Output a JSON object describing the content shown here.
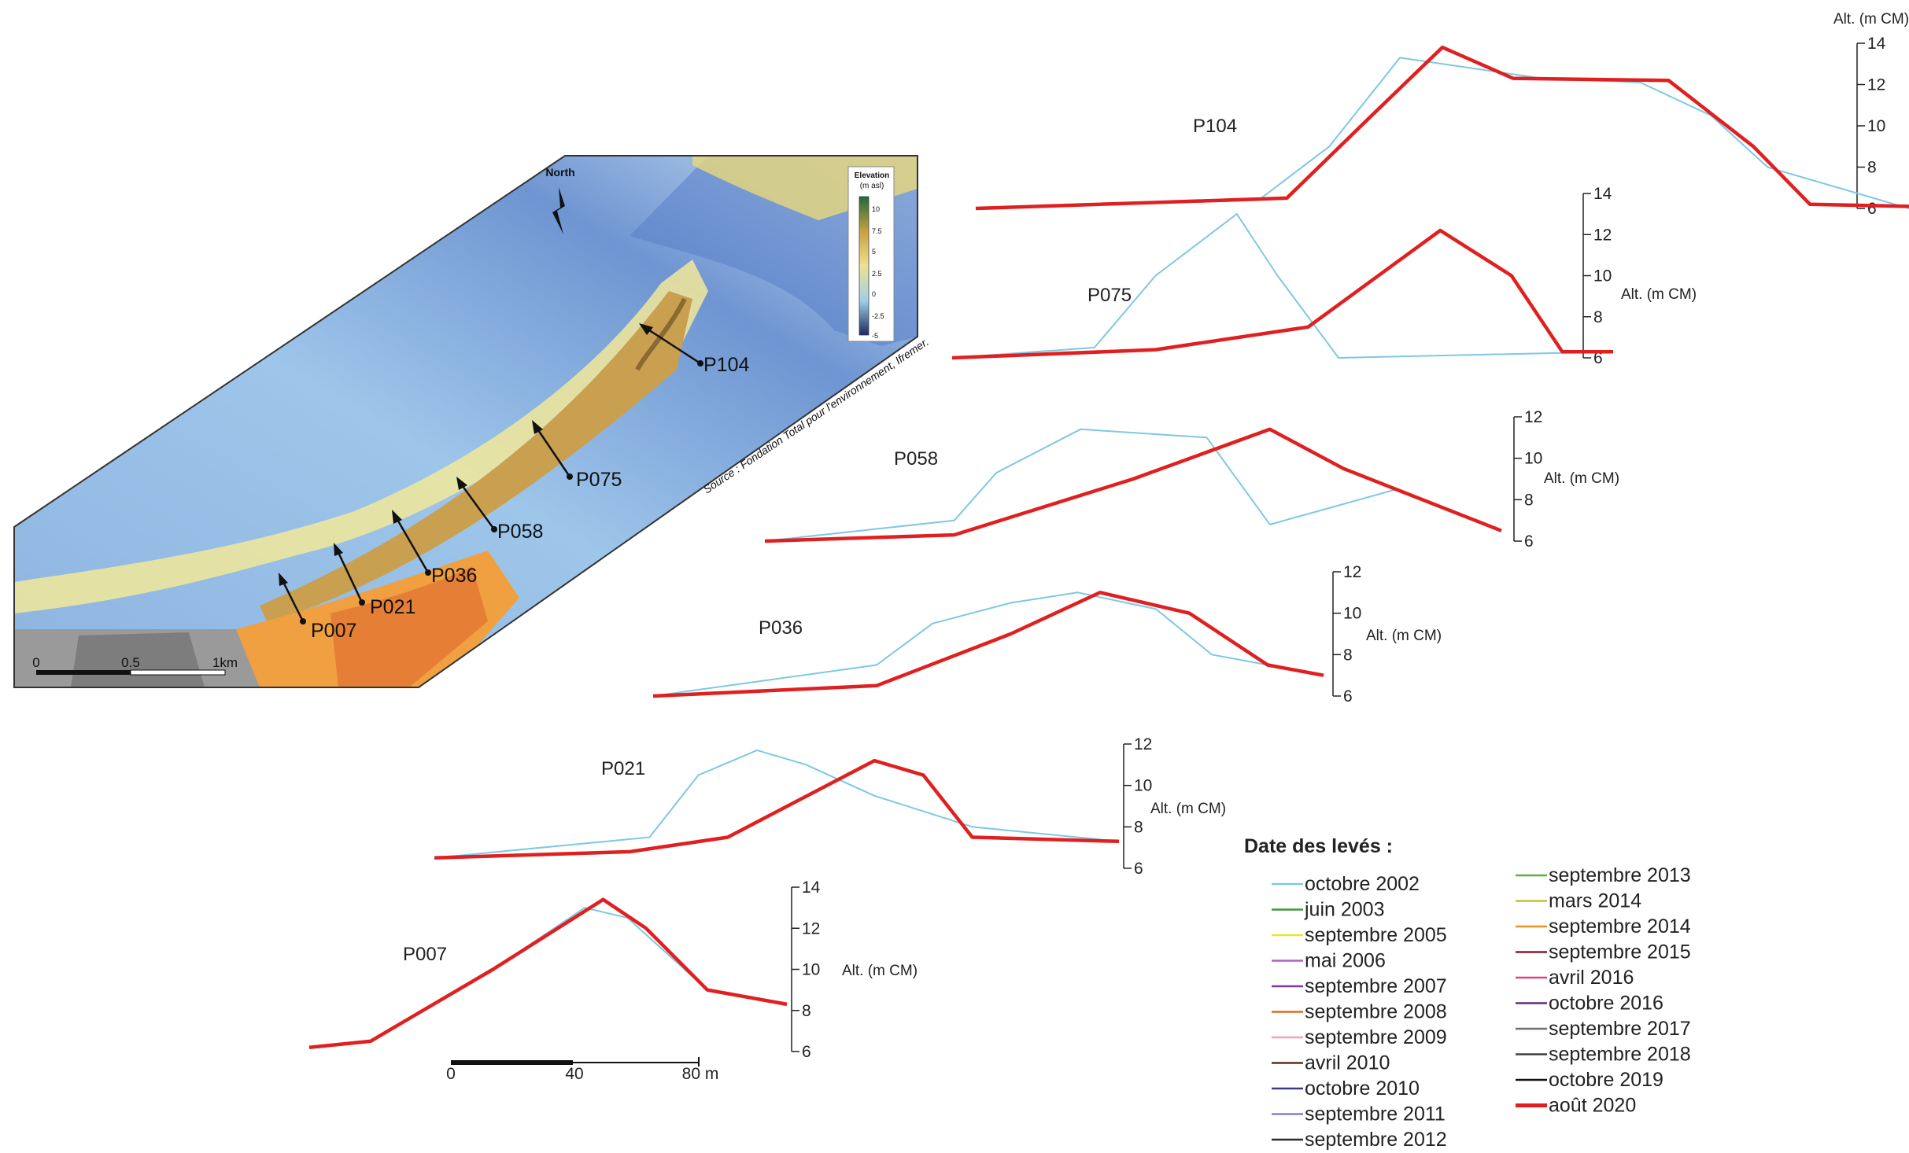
{
  "map": {
    "north_label": "North",
    "elevation_title": "Elevation",
    "elevation_unit": "(m asl)",
    "elevation_ticks": [
      "10",
      "7.5",
      "5",
      "2.5",
      "0",
      "-2.5",
      "-5"
    ],
    "source": "Source : Fondation Total pour l'environnement, Ifremer.",
    "scale_labels": [
      "0",
      "0.5",
      "1km"
    ],
    "profile_labels": [
      "P104",
      "P075",
      "P058",
      "P036",
      "P021",
      "P007"
    ]
  },
  "profile_scale": {
    "labels": [
      "0",
      "40",
      "80 m"
    ]
  },
  "legend": {
    "title": "Date des levés :",
    "items": [
      {
        "label": "octobre 2002",
        "color": "#7ec8e3"
      },
      {
        "label": "juin 2003",
        "color": "#3a9a3a"
      },
      {
        "label": "septembre 2005",
        "color": "#e8e820"
      },
      {
        "label": "mai 2006",
        "color": "#b060c0"
      },
      {
        "label": "septembre 2007",
        "color": "#7a3a9a"
      },
      {
        "label": "septembre 2008",
        "color": "#e06a20"
      },
      {
        "label": "septembre 2009",
        "color": "#f0a0c0"
      },
      {
        "label": "avril 2010",
        "color": "#5a3020"
      },
      {
        "label": "octobre 2010",
        "color": "#3a3a8a"
      },
      {
        "label": "septembre 2011",
        "color": "#8080d0"
      },
      {
        "label": "septembre 2012",
        "color": "#2a2a2a"
      },
      {
        "label": "septembre 2013",
        "color": "#5ab03a"
      },
      {
        "label": "mars 2014",
        "color": "#c8c030"
      },
      {
        "label": "septembre 2014",
        "color": "#f0902a"
      },
      {
        "label": "septembre 2015",
        "color": "#8a1a2a"
      },
      {
        "label": "avril 2016",
        "color": "#e04080"
      },
      {
        "label": "octobre 2016",
        "color": "#6a2a7a"
      },
      {
        "label": "septembre 2017",
        "color": "#707070"
      },
      {
        "label": "septembre 2018",
        "color": "#404040"
      },
      {
        "label": "octobre 2019",
        "color": "#111111"
      },
      {
        "label": "août 2020",
        "color": "#e02020"
      }
    ]
  },
  "chart_data": [
    {
      "type": "line",
      "name": "P104",
      "ylabel": "Alt. (m CM)",
      "yticks": [
        "14",
        "12",
        "10",
        "8",
        "6"
      ],
      "ylim": [
        6,
        14
      ],
      "series": [
        {
          "name": "octobre 2002",
          "x": [
            0,
            20,
            25,
            30,
            40,
            47,
            52,
            56,
            66
          ],
          "y": [
            6.0,
            6.4,
            9.0,
            13.3,
            12.3,
            12.1,
            10.5,
            8.0,
            6.0
          ]
        },
        {
          "name": "août 2020",
          "x": [
            0,
            22,
            28,
            33,
            38,
            49,
            55,
            59,
            66
          ],
          "y": [
            6.0,
            6.5,
            10.5,
            13.8,
            12.3,
            12.2,
            9.0,
            6.2,
            6.1
          ]
        }
      ]
    },
    {
      "type": "line",
      "name": "P075",
      "ylabel": "Alt. (m CM)",
      "yticks": [
        "14",
        "12",
        "10",
        "8",
        "6"
      ],
      "ylim": [
        6,
        14
      ],
      "series": [
        {
          "name": "octobre 2002",
          "x": [
            0,
            14,
            20,
            28,
            32,
            38,
            65
          ],
          "y": [
            6.0,
            6.5,
            10.0,
            13.0,
            10.0,
            6.0,
            6.3
          ]
        },
        {
          "name": "août 2020",
          "x": [
            0,
            20,
            35,
            48,
            55,
            60,
            65
          ],
          "y": [
            6.0,
            6.4,
            7.5,
            12.2,
            10.0,
            6.3,
            6.3
          ]
        }
      ]
    },
    {
      "type": "line",
      "name": "P058",
      "ylabel": "Alt. (m CM)",
      "yticks": [
        "12",
        "10",
        "8",
        "6"
      ],
      "ylim": [
        6,
        12
      ],
      "series": [
        {
          "name": "octobre 2002",
          "x": [
            0,
            18,
            22,
            30,
            42,
            48,
            60,
            70
          ],
          "y": [
            6.0,
            7.0,
            9.3,
            11.4,
            11.0,
            6.8,
            8.5,
            6.5
          ]
        },
        {
          "name": "août 2020",
          "x": [
            0,
            18,
            35,
            48,
            55,
            60,
            70
          ],
          "y": [
            6.0,
            6.3,
            9.0,
            11.4,
            9.5,
            8.5,
            6.5
          ]
        }
      ]
    },
    {
      "type": "line",
      "name": "P036",
      "ylabel": "Alt. (m CM)",
      "yticks": [
        "12",
        "10",
        "8",
        "6"
      ],
      "ylim": [
        6,
        12
      ],
      "series": [
        {
          "name": "octobre 2002",
          "x": [
            0,
            20,
            25,
            32,
            38,
            45,
            50,
            60
          ],
          "y": [
            6.0,
            7.5,
            9.5,
            10.5,
            11.0,
            10.2,
            8.0,
            7.0
          ]
        },
        {
          "name": "août 2020",
          "x": [
            0,
            20,
            32,
            40,
            48,
            55,
            60
          ],
          "y": [
            6.0,
            6.5,
            9.0,
            11.0,
            10.0,
            7.5,
            7.0
          ]
        }
      ]
    },
    {
      "type": "line",
      "name": "P021",
      "ylabel": "Alt. (m CM)",
      "yticks": [
        "12",
        "10",
        "8",
        "6"
      ],
      "ylim": [
        6,
        12
      ],
      "series": [
        {
          "name": "octobre 2002",
          "x": [
            0,
            22,
            27,
            33,
            38,
            45,
            55,
            70
          ],
          "y": [
            6.5,
            7.5,
            10.5,
            11.7,
            11.0,
            9.5,
            8.0,
            7.3
          ]
        },
        {
          "name": "août 2020",
          "x": [
            0,
            20,
            30,
            45,
            50,
            55,
            70
          ],
          "y": [
            6.5,
            6.8,
            7.5,
            11.2,
            10.5,
            7.5,
            7.3
          ]
        }
      ]
    },
    {
      "type": "line",
      "name": "P007",
      "ylabel": "Alt. (m CM)",
      "yticks": [
        "14",
        "12",
        "10",
        "8",
        "6"
      ],
      "ylim": [
        6,
        14
      ],
      "series": [
        {
          "name": "octobre 2002",
          "x": [
            0,
            10,
            30,
            45,
            52,
            65,
            78
          ],
          "y": [
            6.2,
            6.5,
            10.0,
            13.0,
            12.5,
            9.0,
            8.3
          ]
        },
        {
          "name": "août 2020",
          "x": [
            0,
            10,
            30,
            48,
            55,
            65,
            78
          ],
          "y": [
            6.2,
            6.5,
            10.0,
            13.4,
            12.0,
            9.0,
            8.3
          ]
        }
      ]
    }
  ]
}
